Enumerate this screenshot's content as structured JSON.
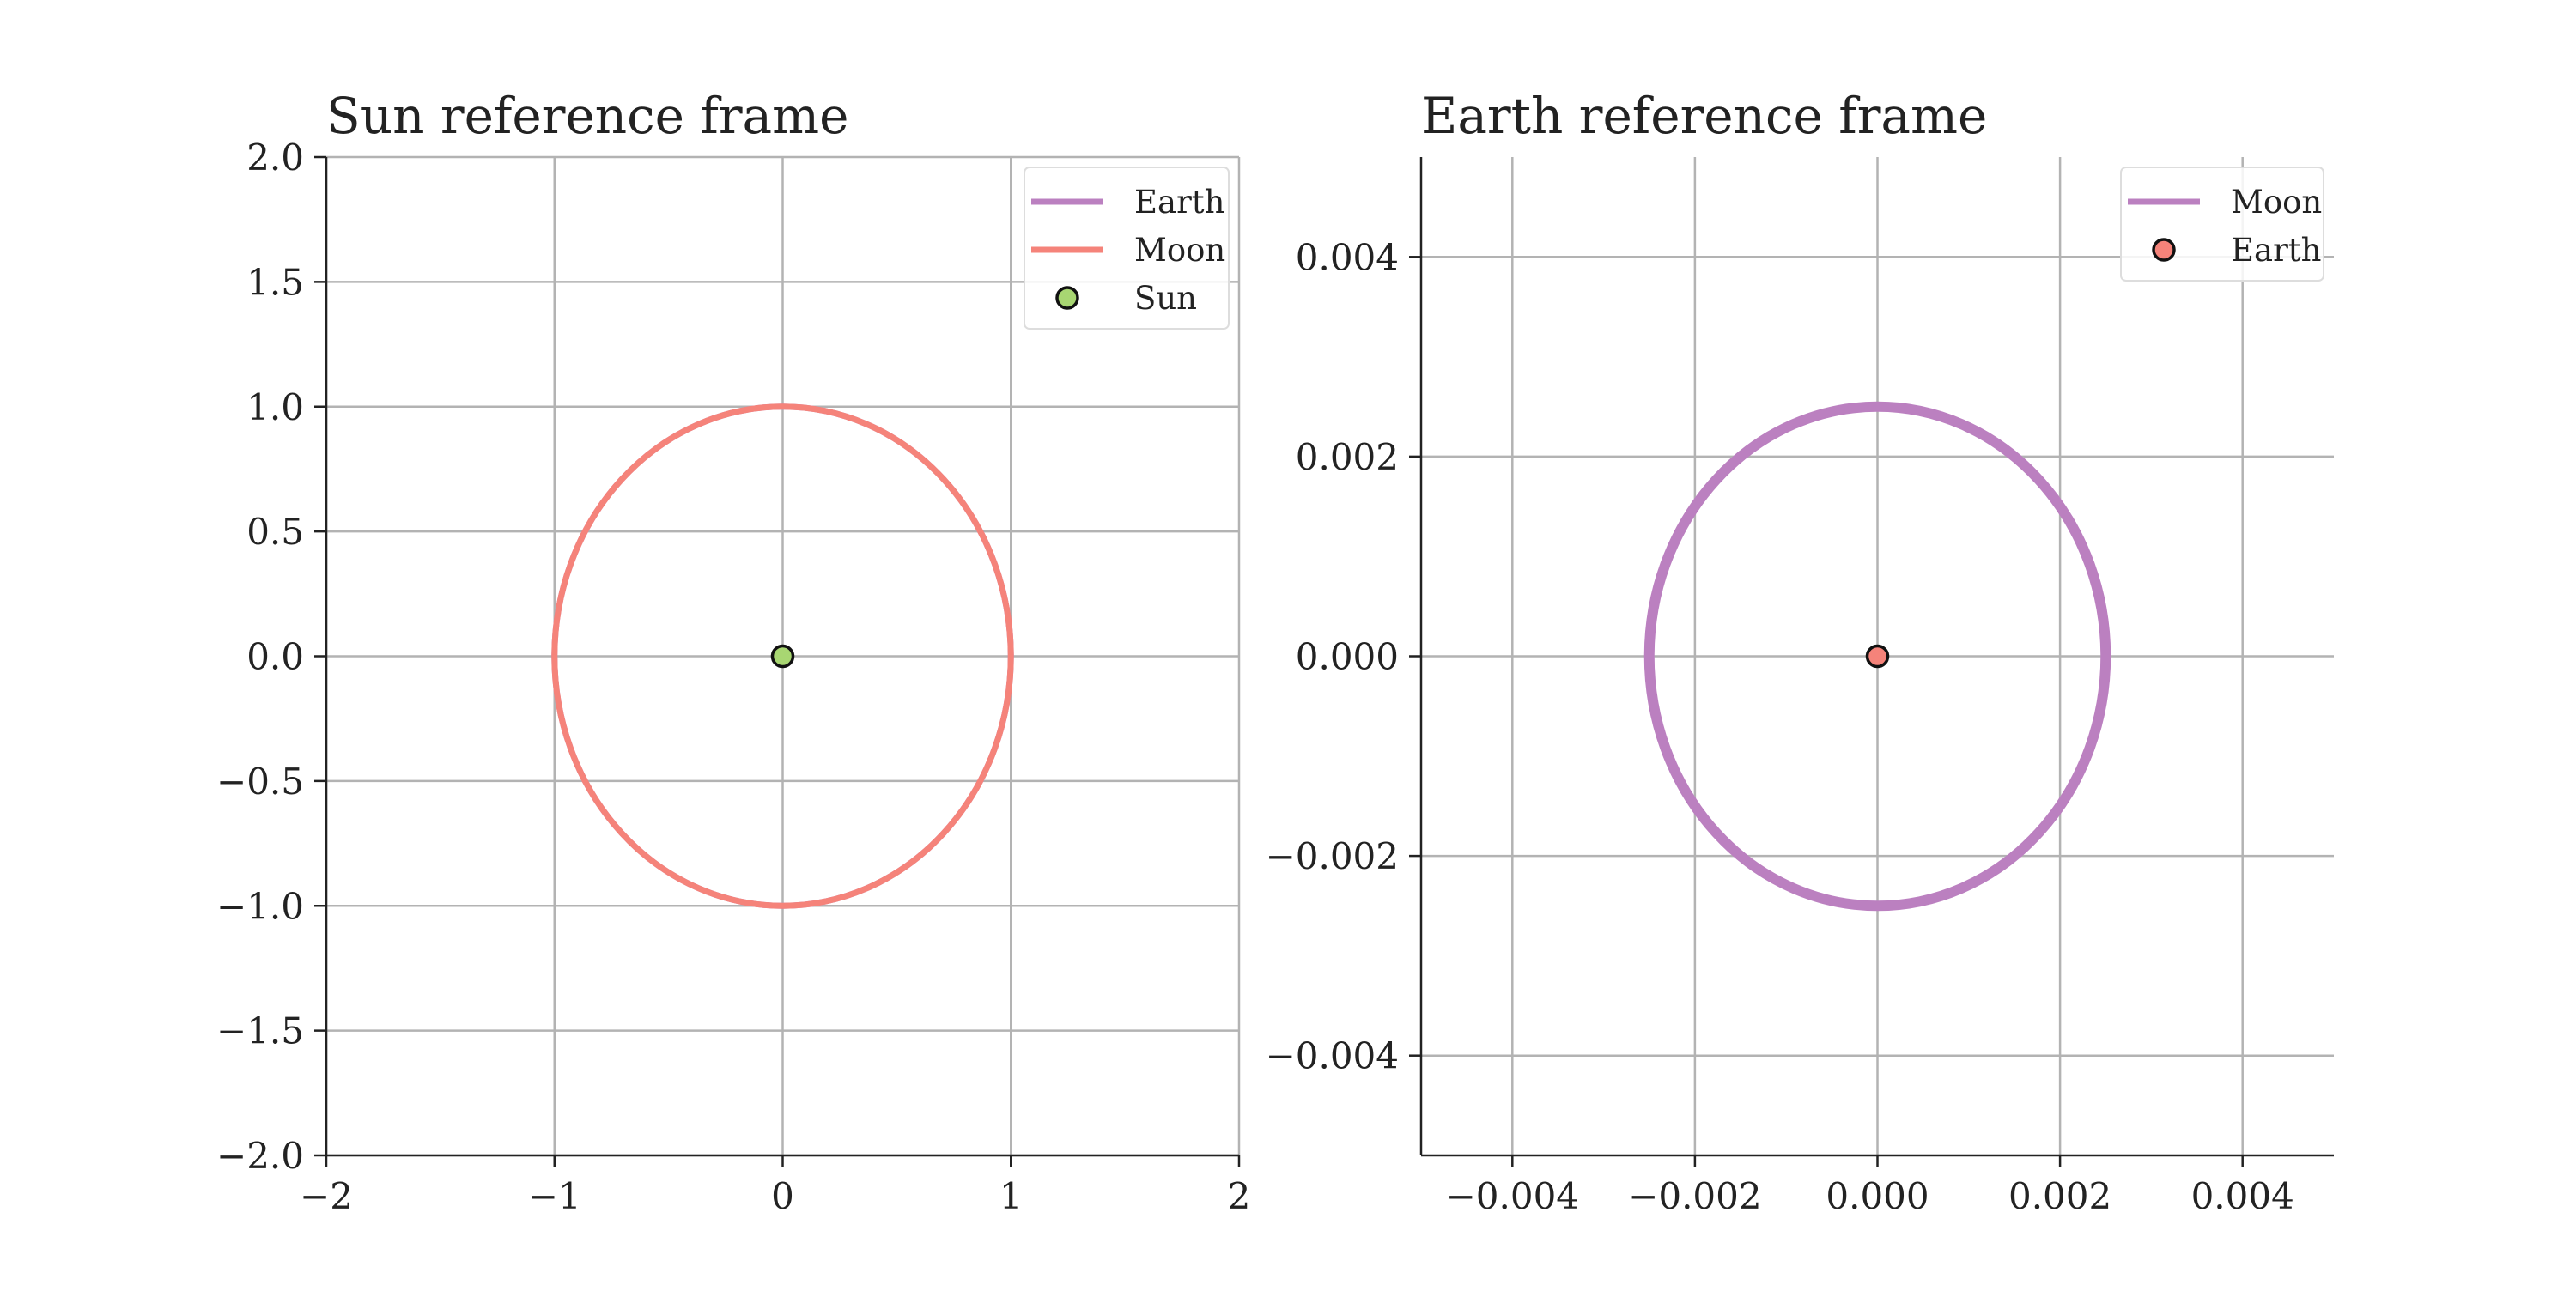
{
  "chart_data": [
    {
      "type": "line",
      "title": "Sun reference frame",
      "xlabel": "",
      "ylabel": "",
      "xlim": [
        -2,
        2
      ],
      "ylim": [
        -2,
        2
      ],
      "xticks": [
        -2,
        -1,
        0,
        1,
        2
      ],
      "xtick_labels": [
        "−2",
        "−1",
        "0",
        "1",
        "2"
      ],
      "yticks": [
        -2.0,
        -1.5,
        -1.0,
        -0.5,
        0.0,
        0.5,
        1.0,
        1.5,
        2.0
      ],
      "ytick_labels": [
        "−2.0",
        "−1.5",
        "−1.0",
        "−0.5",
        "0.0",
        "0.5",
        "1.0",
        "1.5",
        "2.0"
      ],
      "grid": true,
      "legend_position": "top-right",
      "series": [
        {
          "name": "Earth",
          "kind": "orbit",
          "center": [
            0,
            0
          ],
          "radius": 1.0,
          "color": "#bb80c0"
        },
        {
          "name": "Moon",
          "kind": "orbit",
          "center": [
            0,
            0
          ],
          "radius": 1.0,
          "color": "#f5837a"
        },
        {
          "name": "Sun",
          "kind": "point",
          "x": 0,
          "y": 0,
          "color": "#a8d672"
        }
      ]
    },
    {
      "type": "line",
      "title": "Earth reference frame",
      "xlabel": "",
      "ylabel": "",
      "xlim": [
        -0.005,
        0.005
      ],
      "ylim": [
        -0.005,
        0.005
      ],
      "xticks": [
        -0.004,
        -0.002,
        0.0,
        0.002,
        0.004
      ],
      "xtick_labels": [
        "−0.004",
        "−0.002",
        "0.000",
        "0.002",
        "0.004"
      ],
      "yticks": [
        -0.004,
        -0.002,
        0.0,
        0.002,
        0.004
      ],
      "ytick_labels": [
        "−0.004",
        "−0.002",
        "0.000",
        "0.002",
        "0.004"
      ],
      "grid": true,
      "legend_position": "top-right",
      "series": [
        {
          "name": "Moon",
          "kind": "orbit",
          "center": [
            0,
            0
          ],
          "radius": 0.0025,
          "color": "#bb80c0"
        },
        {
          "name": "Earth",
          "kind": "point",
          "x": 0,
          "y": 0,
          "color": "#f5837a"
        }
      ]
    }
  ]
}
